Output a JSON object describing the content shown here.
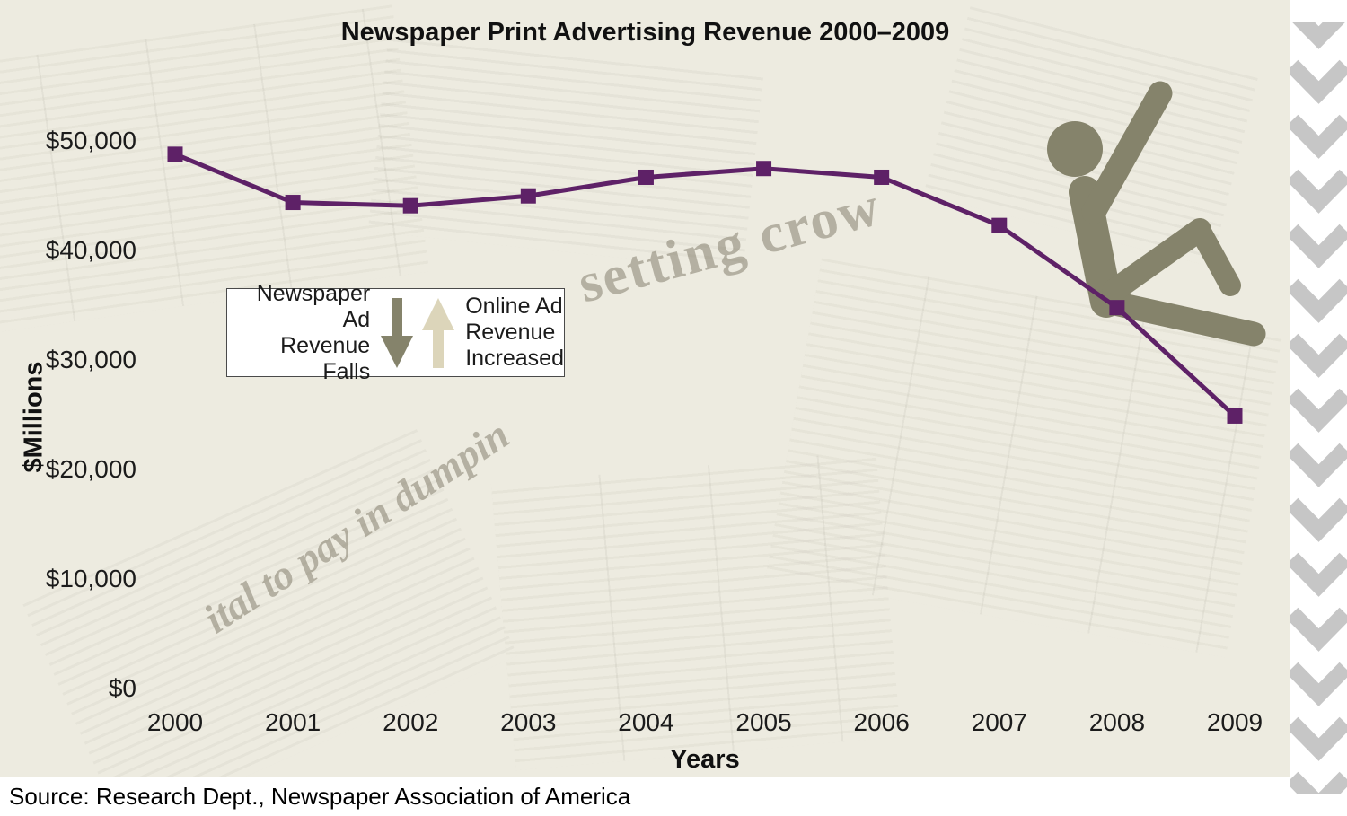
{
  "title": "Newspaper Print Advertising Revenue 2000–2009",
  "source": "Source: Research Dept., Newspaper Association of America",
  "legend": {
    "left_lines": [
      "Newspaper Ad",
      "Revenue",
      "Falls"
    ],
    "right_lines": [
      "Online Ad",
      "Revenue",
      "Increased"
    ],
    "down_arrow_meaning": "Newspaper Ad Revenue Falls",
    "up_arrow_meaning": "Online Ad Revenue Increased"
  },
  "chart_data": {
    "type": "line",
    "title": "Newspaper Print Advertising Revenue 2000–2009",
    "xlabel": "Years",
    "ylabel": "$Millions",
    "categories": [
      "2000",
      "2001",
      "2002",
      "2003",
      "2004",
      "2005",
      "2006",
      "2007",
      "2008",
      "2009"
    ],
    "values": [
      48700,
      44300,
      44000,
      44900,
      46600,
      47400,
      46600,
      42200,
      34700,
      24800
    ],
    "ylim": [
      0,
      50000
    ],
    "yticks": [
      "$50,000",
      "$40,000",
      "$30,000",
      "$20,000",
      "$10,000",
      "$0"
    ],
    "ytick_values": [
      50000,
      40000,
      30000,
      20000,
      10000,
      0
    ],
    "line_color": "#5e2167",
    "marker": "square",
    "grid": false,
    "legend_position": "inside-left"
  },
  "background_texture_words": [
    "setting crow",
    "ital to pay in dumpin"
  ],
  "colors": {
    "background": "#edebe0",
    "line": "#5e2167",
    "falling_person": "#85836b",
    "chevron": "#c6c6c6",
    "legend_down_arrow": "#85836b",
    "legend_up_arrow": "#dcd5ba"
  }
}
